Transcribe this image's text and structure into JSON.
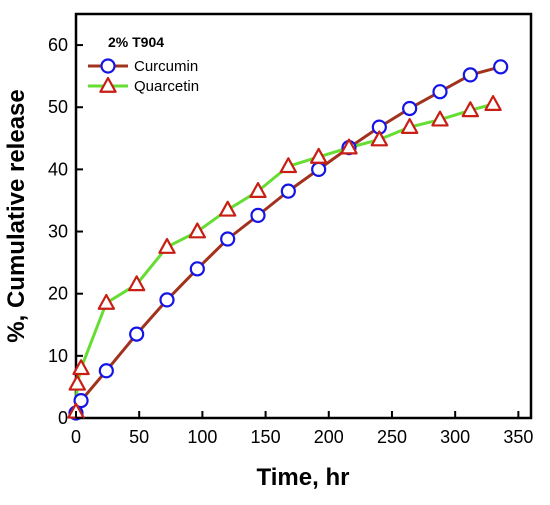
{
  "chart_data": {
    "type": "line",
    "title": "",
    "xlabel": "Time, hr",
    "ylabel": "%, Cumulative release",
    "xlim": [
      0,
      360
    ],
    "ylim": [
      0,
      65
    ],
    "xticks": [
      0,
      50,
      100,
      150,
      200,
      250,
      300,
      350
    ],
    "yticks": [
      0,
      10,
      20,
      30,
      40,
      50,
      60
    ],
    "grid": false,
    "legend": {
      "title": "2% T904",
      "placement": "top-left"
    },
    "series": [
      {
        "name": "Curcumin",
        "marker": "circle",
        "line_color": "#a0321e",
        "marker_color": "#1414e6",
        "points": [
          {
            "x": 0,
            "y": 0.8
          },
          {
            "x": 4,
            "y": 2.8
          },
          {
            "x": 24,
            "y": 7.6
          },
          {
            "x": 48,
            "y": 13.5
          },
          {
            "x": 72,
            "y": 19.0
          },
          {
            "x": 96,
            "y": 24.0
          },
          {
            "x": 120,
            "y": 28.8
          },
          {
            "x": 144,
            "y": 32.6
          },
          {
            "x": 168,
            "y": 36.5
          },
          {
            "x": 192,
            "y": 40.0
          },
          {
            "x": 216,
            "y": 43.5
          },
          {
            "x": 240,
            "y": 46.8
          },
          {
            "x": 264,
            "y": 49.8
          },
          {
            "x": 288,
            "y": 52.5
          },
          {
            "x": 312,
            "y": 55.2
          },
          {
            "x": 336,
            "y": 56.5
          }
        ]
      },
      {
        "name": "Quarcetin",
        "marker": "triangle",
        "line_color": "#66dd33",
        "marker_color": "#c81e14",
        "points": [
          {
            "x": 0,
            "y": 1.0
          },
          {
            "x": 1,
            "y": 5.5
          },
          {
            "x": 4,
            "y": 8.0
          },
          {
            "x": 24,
            "y": 18.5
          },
          {
            "x": 48,
            "y": 21.5
          },
          {
            "x": 72,
            "y": 27.5
          },
          {
            "x": 96,
            "y": 30.0
          },
          {
            "x": 120,
            "y": 33.5
          },
          {
            "x": 144,
            "y": 36.5
          },
          {
            "x": 168,
            "y": 40.5
          },
          {
            "x": 192,
            "y": 42.0
          },
          {
            "x": 216,
            "y": 43.5
          },
          {
            "x": 240,
            "y": 44.8
          },
          {
            "x": 264,
            "y": 46.8
          },
          {
            "x": 288,
            "y": 48.0
          },
          {
            "x": 312,
            "y": 49.5
          },
          {
            "x": 330,
            "y": 50.5
          }
        ]
      }
    ]
  }
}
